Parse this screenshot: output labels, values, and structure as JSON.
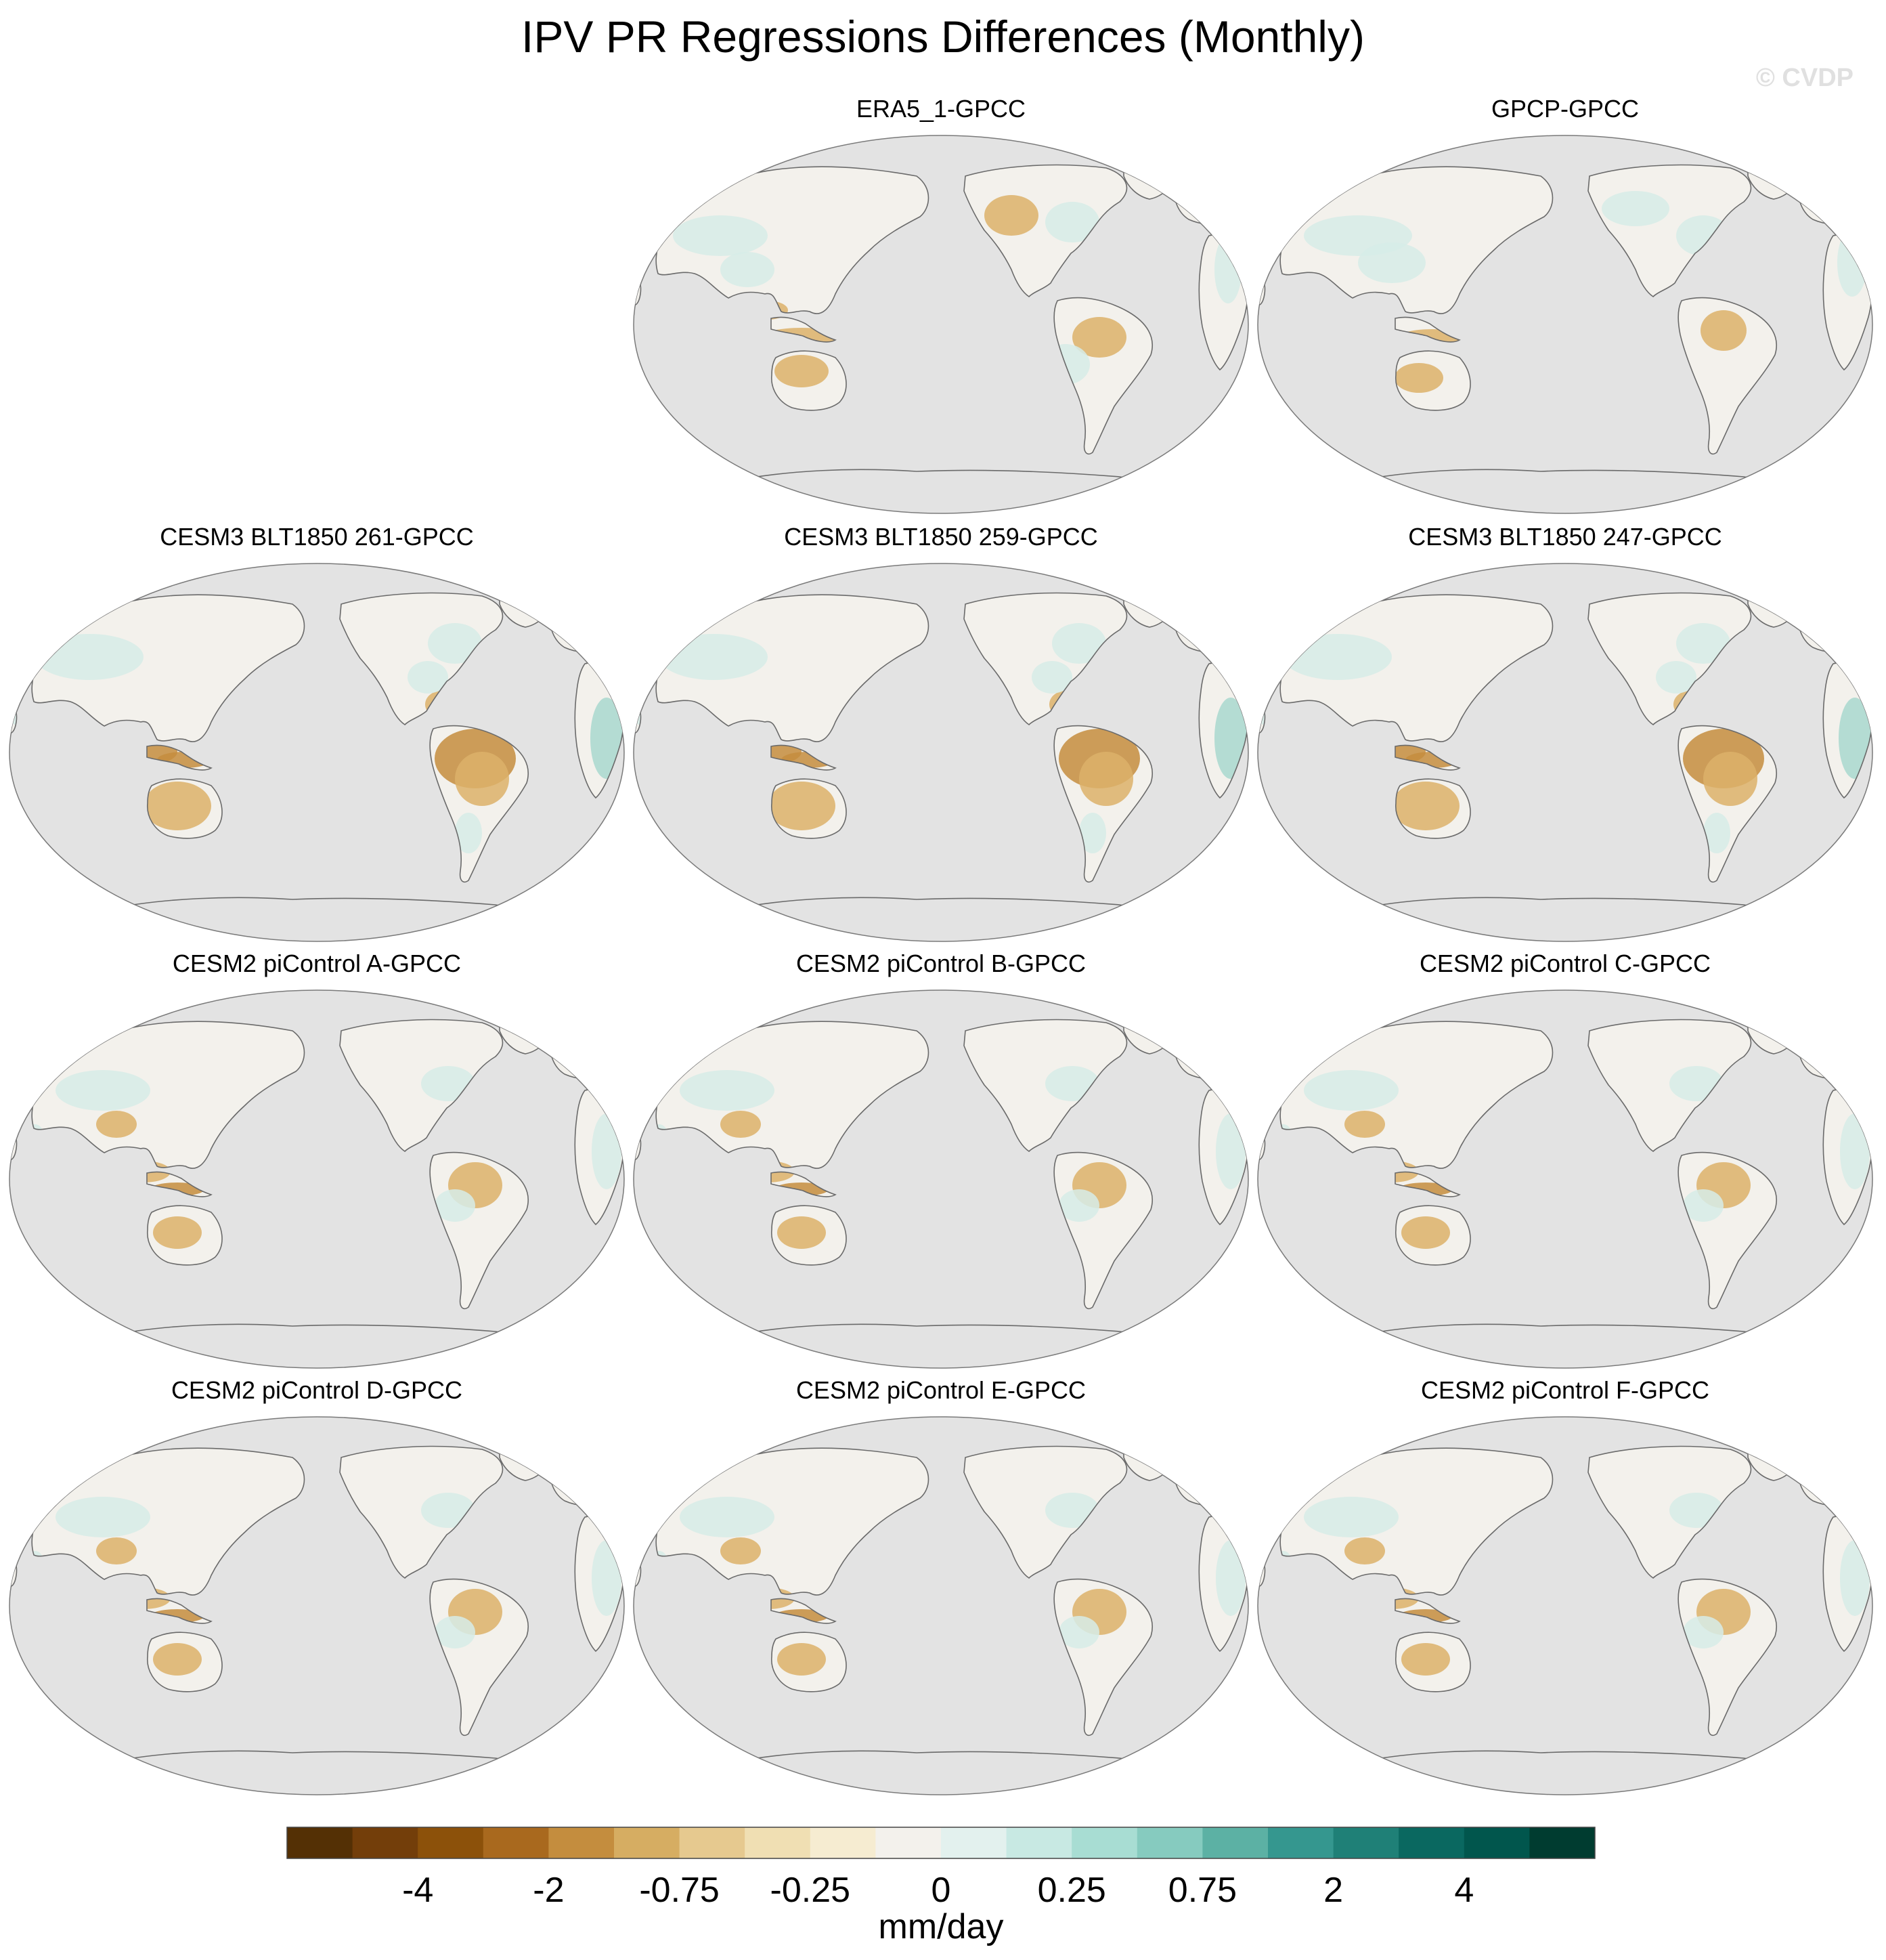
{
  "title": "IPV PR Regressions Differences (Monthly)",
  "watermark": "© CVDP",
  "panels": [
    {
      "title": "ERA5_1-GPCC",
      "col": 1,
      "row": 0,
      "pattern": "obs1"
    },
    {
      "title": "GPCP-GPCC",
      "col": 2,
      "row": 0,
      "pattern": "obs2"
    },
    {
      "title": "CESM3 BLT1850 261-GPCC",
      "col": 0,
      "row": 1,
      "pattern": "strong"
    },
    {
      "title": "CESM3 BLT1850 259-GPCC",
      "col": 1,
      "row": 1,
      "pattern": "strong"
    },
    {
      "title": "CESM3 BLT1850 247-GPCC",
      "col": 2,
      "row": 1,
      "pattern": "strong"
    },
    {
      "title": "CESM2 piControl A-GPCC",
      "col": 0,
      "row": 2,
      "pattern": "moderate"
    },
    {
      "title": "CESM2 piControl B-GPCC",
      "col": 1,
      "row": 2,
      "pattern": "moderate"
    },
    {
      "title": "CESM2 piControl C-GPCC",
      "col": 2,
      "row": 2,
      "pattern": "moderate"
    },
    {
      "title": "CESM2 piControl D-GPCC",
      "col": 0,
      "row": 3,
      "pattern": "moderate"
    },
    {
      "title": "CESM2 piControl E-GPCC",
      "col": 1,
      "row": 3,
      "pattern": "moderate"
    },
    {
      "title": "CESM2 piControl F-GPCC",
      "col": 2,
      "row": 3,
      "pattern": "moderate"
    }
  ],
  "colors": {
    "ocean": "#e3e3e3",
    "land_neutral": "#f3f1ec",
    "coast": "#6a6a6a",
    "dry": "#dcb26a",
    "dry_strong": "#c48d3e",
    "wet": "#d6ece8",
    "wet_strong": "#a8d8cf"
  },
  "colorbar": {
    "label": "mm/day",
    "colors": [
      "#543005",
      "#733e0a",
      "#8c510a",
      "#a9691e",
      "#c48d3e",
      "#d6ad62",
      "#e6c98f",
      "#f0dfb3",
      "#f6ecd1",
      "#f3f1ec",
      "#e3f1ee",
      "#c8e9e3",
      "#a8ddd3",
      "#86cbbf",
      "#5cb1a4",
      "#35978f",
      "#1f8077",
      "#0a6860",
      "#01564d",
      "#003c30"
    ],
    "ticks": [
      {
        "label": "-4",
        "boundary": 2
      },
      {
        "label": "-2",
        "boundary": 4
      },
      {
        "label": "-0.75",
        "boundary": 6
      },
      {
        "label": "-0.25",
        "boundary": 8
      },
      {
        "label": "0",
        "boundary": 10
      },
      {
        "label": "0.25",
        "boundary": 12
      },
      {
        "label": "0.75",
        "boundary": 14
      },
      {
        "label": "2",
        "boundary": 16
      },
      {
        "label": "4",
        "boundary": 18
      }
    ]
  }
}
